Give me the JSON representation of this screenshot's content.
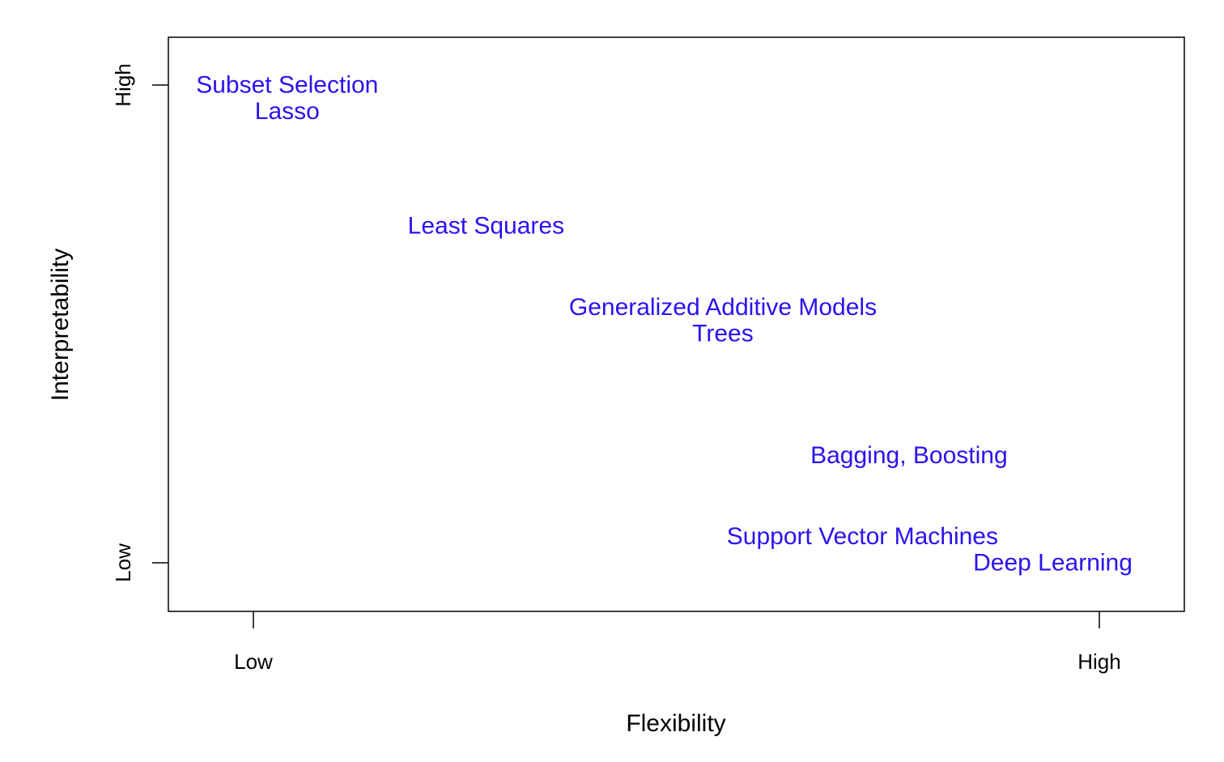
{
  "chart_data": {
    "type": "scatter",
    "title": "",
    "xlabel": "Flexibility",
    "ylabel": "Interpretability",
    "xlim": [
      0,
      1
    ],
    "ylim": [
      0,
      1
    ],
    "x_ticks": [
      {
        "value": 0,
        "label": "Low"
      },
      {
        "value": 1,
        "label": "High"
      }
    ],
    "y_ticks": [
      {
        "value": 0,
        "label": "Low"
      },
      {
        "value": 1,
        "label": "High"
      }
    ],
    "grid": false,
    "label_color": "#2a12f0",
    "points": [
      {
        "label": "Subset Selection",
        "x": 0.04,
        "y": 1.0
      },
      {
        "label": "Lasso",
        "x": 0.04,
        "y": 0.945
      },
      {
        "label": "Least Squares",
        "x": 0.275,
        "y": 0.705
      },
      {
        "label": "Generalized Additive Models",
        "x": 0.555,
        "y": 0.535
      },
      {
        "label": "Trees",
        "x": 0.555,
        "y": 0.48
      },
      {
        "label": "Bagging, Boosting",
        "x": 0.775,
        "y": 0.225
      },
      {
        "label": "Support Vector Machines",
        "x": 0.72,
        "y": 0.055
      },
      {
        "label": "Deep Learning",
        "x": 0.945,
        "y": 0.0
      }
    ]
  }
}
